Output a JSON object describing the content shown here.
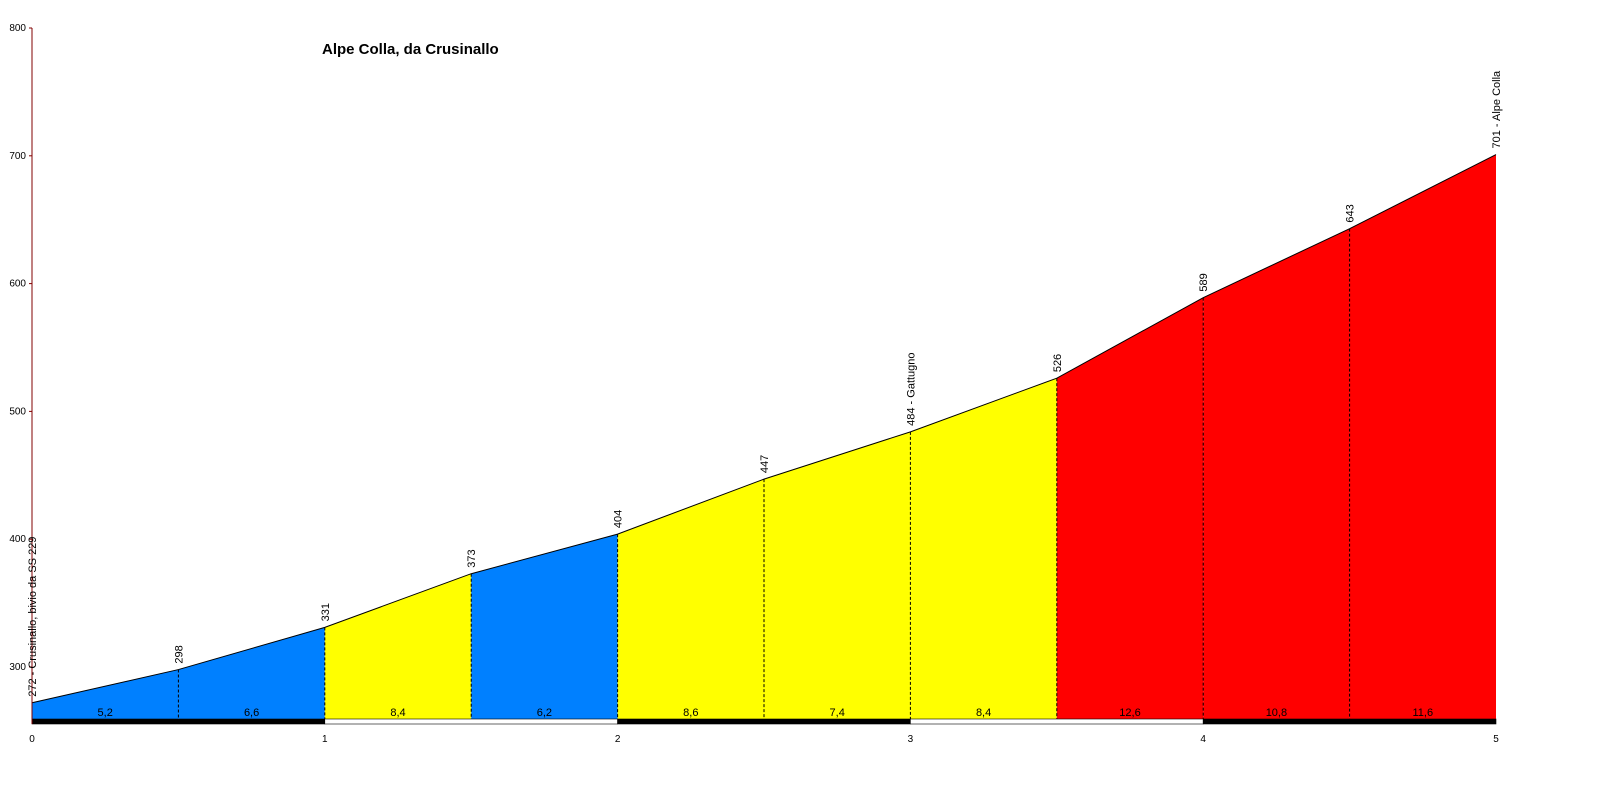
{
  "chart_data": {
    "type": "area",
    "title": "Alpe Colla, da Crusinallo",
    "xlabel": "",
    "ylabel": "",
    "xlim": [
      0,
      5
    ],
    "ylim": [
      260,
      800
    ],
    "x_ticks": [
      "0",
      "1",
      "2",
      "3",
      "4",
      "5"
    ],
    "y_ticks": [
      "300",
      "400",
      "500",
      "600",
      "700",
      "800"
    ],
    "x": [
      0,
      0.5,
      1,
      1.5,
      2,
      2.5,
      3,
      3.5,
      4,
      4.5,
      5
    ],
    "elevations": [
      272,
      298,
      331,
      373,
      404,
      447,
      484,
      526,
      589,
      643,
      701
    ],
    "point_labels": [
      "272 - Crusinallo, bivio da SS 229",
      "298",
      "331",
      "373",
      "404",
      "447",
      "484 - Gattugno",
      "526",
      "589",
      "643",
      "701 - Alpe Colla"
    ],
    "grades": [
      "5,2",
      "6,6",
      "8,4",
      "6,2",
      "8,6",
      "7,4",
      "8,4",
      "12,6",
      "10,8",
      "11,6"
    ],
    "colors": {
      "blue": "#0080ff",
      "yellow": "#ffff00",
      "red": "#ff0000"
    },
    "segment_colors": [
      "blue",
      "blue",
      "yellow",
      "blue",
      "yellow",
      "yellow",
      "yellow",
      "red",
      "red",
      "red"
    ],
    "km_bar_pattern": [
      "black",
      "white",
      "black",
      "white",
      "black"
    ]
  }
}
